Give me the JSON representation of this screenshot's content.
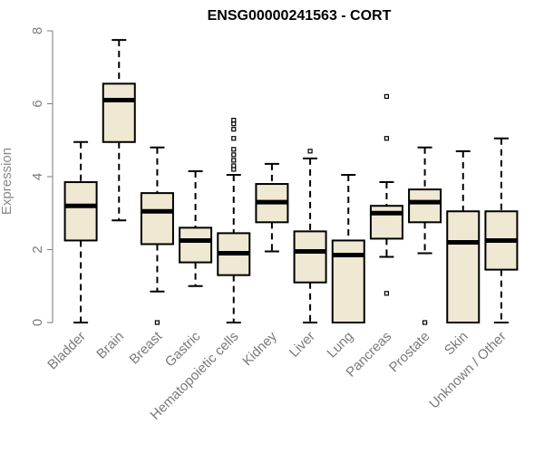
{
  "chart_data": {
    "type": "boxplot",
    "title": "ENSG00000241563 - CORT",
    "xlabel": "",
    "ylabel": "Expression",
    "ylim": [
      0,
      8
    ],
    "yticks": [
      0,
      2,
      4,
      6,
      8
    ],
    "box_color": "#efe8d2",
    "categories": [
      "Bladder",
      "Brain",
      "Breast",
      "Gastric",
      "Hematopoietic cells",
      "Kidney",
      "Liver",
      "Lung",
      "Pancreas",
      "Prostate",
      "Skin",
      "Unknown / Other"
    ],
    "boxes": [
      {
        "min": 0.0,
        "q1": 2.25,
        "median": 3.2,
        "q3": 3.85,
        "max": 4.95,
        "outliers": []
      },
      {
        "min": 2.8,
        "q1": 4.95,
        "median": 6.1,
        "q3": 6.55,
        "max": 7.75,
        "outliers": []
      },
      {
        "min": 0.85,
        "q1": 2.15,
        "median": 3.05,
        "q3": 3.55,
        "max": 4.8,
        "outliers": [
          0.0
        ]
      },
      {
        "min": 1.0,
        "q1": 1.65,
        "median": 2.25,
        "q3": 2.6,
        "max": 4.15,
        "outliers": []
      },
      {
        "min": 0.0,
        "q1": 1.3,
        "median": 1.9,
        "q3": 2.45,
        "max": 4.05,
        "outliers": [
          4.2,
          4.3,
          4.45,
          4.6,
          4.75,
          5.05,
          5.3,
          5.45,
          5.55
        ]
      },
      {
        "min": 1.95,
        "q1": 2.75,
        "median": 3.3,
        "q3": 3.8,
        "max": 4.35,
        "outliers": []
      },
      {
        "min": 0.0,
        "q1": 1.1,
        "median": 1.95,
        "q3": 2.5,
        "max": 4.5,
        "outliers": [
          4.7
        ]
      },
      {
        "min": 0.0,
        "q1": 0.0,
        "median": 1.85,
        "q3": 2.25,
        "max": 4.05,
        "outliers": []
      },
      {
        "min": 1.8,
        "q1": 2.3,
        "median": 3.0,
        "q3": 3.2,
        "max": 3.85,
        "outliers": [
          0.8,
          5.05,
          6.2
        ]
      },
      {
        "min": 1.9,
        "q1": 2.75,
        "median": 3.3,
        "q3": 3.65,
        "max": 4.8,
        "outliers": [
          0.0
        ]
      },
      {
        "min": 0.0,
        "q1": 0.0,
        "median": 2.2,
        "q3": 3.05,
        "max": 4.7,
        "outliers": []
      },
      {
        "min": 0.0,
        "q1": 1.45,
        "median": 2.25,
        "q3": 3.05,
        "max": 5.05,
        "outliers": []
      }
    ]
  }
}
